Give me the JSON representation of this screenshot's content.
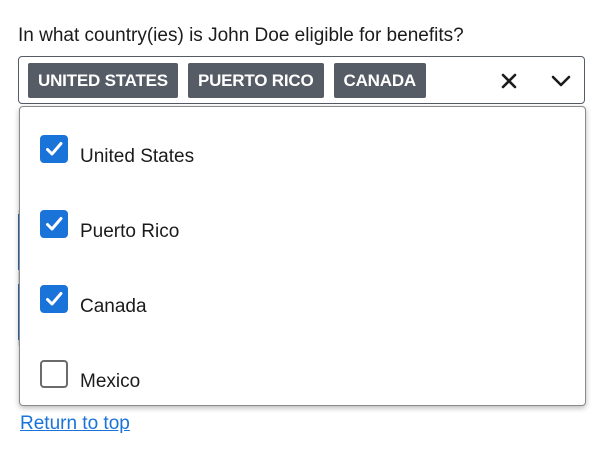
{
  "question": "In what country(ies) is John Doe eligible for benefits?",
  "selected_chips": [
    {
      "label": "UNITED STATES"
    },
    {
      "label": "PUERTO RICO"
    },
    {
      "label": "CANADA"
    }
  ],
  "controls": {
    "clear_icon": "close-icon",
    "toggle_icon": "chevron-down-icon"
  },
  "options": [
    {
      "label": "United States",
      "checked": true
    },
    {
      "label": "Puerto Rico",
      "checked": true
    },
    {
      "label": "Canada",
      "checked": true
    },
    {
      "label": "Mexico",
      "checked": false
    }
  ],
  "return_link": "Return to top",
  "colors": {
    "chip_bg": "#565c65",
    "check_blue": "#1a73d9",
    "link": "#1a73d9"
  }
}
